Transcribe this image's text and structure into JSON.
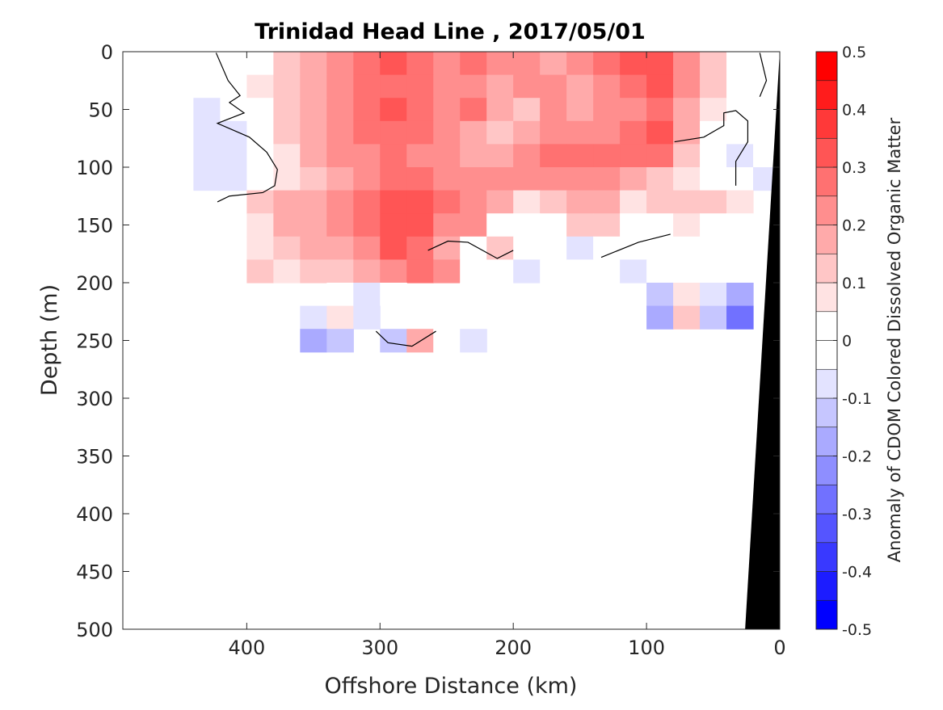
{
  "chart_data": {
    "type": "heatmap",
    "title": "Trinidad Head Line , 2017/05/01",
    "xlabel": "Offshore Distance (km)",
    "ylabel": "Depth (m)",
    "colorbar_label": "Anomaly of CDOM Colored Dissolved Organic Matter",
    "xlim": [
      493,
      0
    ],
    "ylim": [
      500,
      0
    ],
    "x_reversed": true,
    "y_reversed": true,
    "xticks": [
      "400",
      "300",
      "200",
      "100",
      "0"
    ],
    "xtick_values": [
      400,
      300,
      200,
      100,
      0
    ],
    "yticks": [
      "0",
      "50",
      "100",
      "150",
      "200",
      "250",
      "300",
      "350",
      "400",
      "450",
      "500"
    ],
    "ytick_values": [
      0,
      50,
      100,
      150,
      200,
      250,
      300,
      350,
      400,
      450,
      500
    ],
    "clim": [
      -0.5,
      0.5
    ],
    "level_step": 0.05,
    "colorbar_ticks": [
      "0.5",
      "0.4",
      "0.3",
      "0.2",
      "0.1",
      "0",
      "-0.1",
      "-0.2",
      "-0.3",
      "-0.4",
      "-0.5"
    ],
    "colorbar_tick_values": [
      0.5,
      0.4,
      0.3,
      0.2,
      0.1,
      0,
      -0.1,
      -0.2,
      -0.3,
      -0.4,
      -0.5
    ],
    "colormap": "blue-white-red",
    "colors": {
      "negative_end": "#0000ff",
      "positive_end": "#ff0000",
      "zero": "#ffffff",
      "bathymetry": "#000000"
    },
    "grid": false,
    "distance_km": [
      430,
      410,
      390,
      370,
      350,
      330,
      310,
      290,
      270,
      250,
      230,
      210,
      190,
      170,
      150,
      130,
      110,
      90,
      70,
      50,
      30,
      10
    ],
    "depth_m": [
      10,
      30,
      50,
      70,
      90,
      110,
      130,
      150,
      170,
      190,
      210,
      230,
      250
    ],
    "values": [
      [
        0,
        0,
        0,
        0.1,
        0.15,
        0.2,
        0.25,
        0.3,
        0.25,
        0.2,
        0.25,
        0.2,
        0.2,
        0.15,
        0.2,
        0.25,
        0.3,
        0.3,
        0.2,
        0.1,
        0,
        0
      ],
      [
        0,
        0,
        0.05,
        0.1,
        0.15,
        0.2,
        0.25,
        0.25,
        0.25,
        0.2,
        0.2,
        0.15,
        0.2,
        0.2,
        0.15,
        0.2,
        0.25,
        0.3,
        0.2,
        0.1,
        0,
        0
      ],
      [
        -0.06,
        0,
        0.02,
        0.1,
        0.15,
        0.2,
        0.25,
        0.3,
        0.25,
        0.2,
        0.25,
        0.15,
        0.1,
        0.2,
        0.15,
        0.2,
        0.2,
        0.25,
        0.15,
        0.05,
        0,
        0
      ],
      [
        -0.08,
        -0.06,
        0,
        0.1,
        0.15,
        0.2,
        0.25,
        0.25,
        0.25,
        0.2,
        0.15,
        0.1,
        0.15,
        0.2,
        0.2,
        0.2,
        0.25,
        0.3,
        0.15,
        0,
        -0.03,
        0
      ],
      [
        -0.1,
        -0.08,
        0,
        0.08,
        0.15,
        0.2,
        0.2,
        0.25,
        0.2,
        0.2,
        0.15,
        0.15,
        0.2,
        0.25,
        0.25,
        0.25,
        0.25,
        0.25,
        0.1,
        0,
        -0.07,
        -0.05
      ],
      [
        -0.08,
        -0.06,
        0,
        0.06,
        0.12,
        0.15,
        0.2,
        0.25,
        0.25,
        0.2,
        0.2,
        0.2,
        0.2,
        0.2,
        0.2,
        0.2,
        0.15,
        0.1,
        0.05,
        0,
        0,
        -0.1
      ],
      [
        null,
        null,
        0.1,
        0.15,
        0.15,
        0.2,
        0.25,
        0.3,
        0.3,
        0.25,
        0.2,
        0.15,
        0.05,
        0.1,
        0.15,
        0.15,
        0.05,
        0.1,
        0.1,
        0.1,
        0.05,
        null
      ],
      [
        null,
        null,
        0.05,
        0.15,
        0.15,
        0.2,
        0.25,
        0.3,
        0.3,
        0.2,
        0.2,
        0,
        0,
        0,
        0.1,
        0.1,
        0,
        0,
        0.05,
        0,
        0,
        null
      ],
      [
        null,
        null,
        0.05,
        0.1,
        0.15,
        0.15,
        0.2,
        0.3,
        0.25,
        0.15,
        0,
        0.1,
        -0.05,
        0,
        -0.1,
        -0.05,
        -0.05,
        0,
        0,
        0,
        -0.05,
        null
      ],
      [
        null,
        null,
        0.1,
        0.05,
        0.1,
        0.1,
        0.15,
        0.2,
        0.25,
        0.2,
        0,
        -0.05,
        -0.1,
        0,
        -0.05,
        -0.05,
        -0.1,
        -0.05,
        -0.05,
        -0.05,
        0,
        null
      ],
      [
        null,
        null,
        null,
        null,
        null,
        -0.05,
        -0.1,
        0,
        null,
        null,
        -0.05,
        null,
        null,
        null,
        null,
        null,
        null,
        -0.15,
        0.05,
        -0.1,
        -0.2,
        null
      ],
      [
        null,
        null,
        null,
        null,
        -0.1,
        0.05,
        -0.1,
        null,
        null,
        null,
        null,
        null,
        null,
        null,
        null,
        null,
        null,
        -0.2,
        0.1,
        -0.15,
        -0.3,
        null
      ],
      [
        null,
        null,
        null,
        null,
        -0.2,
        -0.15,
        null,
        -0.15,
        0.15,
        -0.05,
        -0.1,
        null,
        null,
        null,
        null,
        null,
        null,
        null,
        null,
        null,
        null,
        null
      ]
    ],
    "zero_contours": [
      [
        [
          423,
          1
        ],
        [
          414,
          25
        ],
        [
          405,
          38
        ],
        [
          413,
          44
        ],
        [
          402,
          53
        ],
        [
          422,
          62
        ],
        [
          398,
          74
        ],
        [
          385,
          87
        ],
        [
          377,
          102
        ],
        [
          379,
          116
        ],
        [
          388,
          122
        ],
        [
          413,
          125
        ],
        [
          422,
          130
        ]
      ],
      [
        [
          79,
          78
        ],
        [
          57,
          74
        ],
        [
          42,
          64
        ],
        [
          42,
          53
        ],
        [
          33,
          51
        ],
        [
          24,
          60
        ],
        [
          24,
          78
        ],
        [
          33,
          95
        ],
        [
          33,
          116
        ]
      ],
      [
        [
          15,
          1
        ],
        [
          10,
          25
        ],
        [
          15,
          39
        ]
      ],
      [
        [
          264,
          172
        ],
        [
          249,
          164
        ],
        [
          234,
          165
        ],
        [
          212,
          179
        ],
        [
          200,
          172
        ]
      ],
      [
        [
          303,
          242
        ],
        [
          294,
          252
        ],
        [
          276,
          255
        ],
        [
          258,
          242
        ]
      ],
      [
        [
          134,
          178
        ],
        [
          106,
          165
        ],
        [
          82,
          158
        ]
      ]
    ],
    "bathymetry": [
      [
        0,
        0
      ],
      [
        0,
        500
      ],
      [
        26,
        500
      ]
    ]
  }
}
